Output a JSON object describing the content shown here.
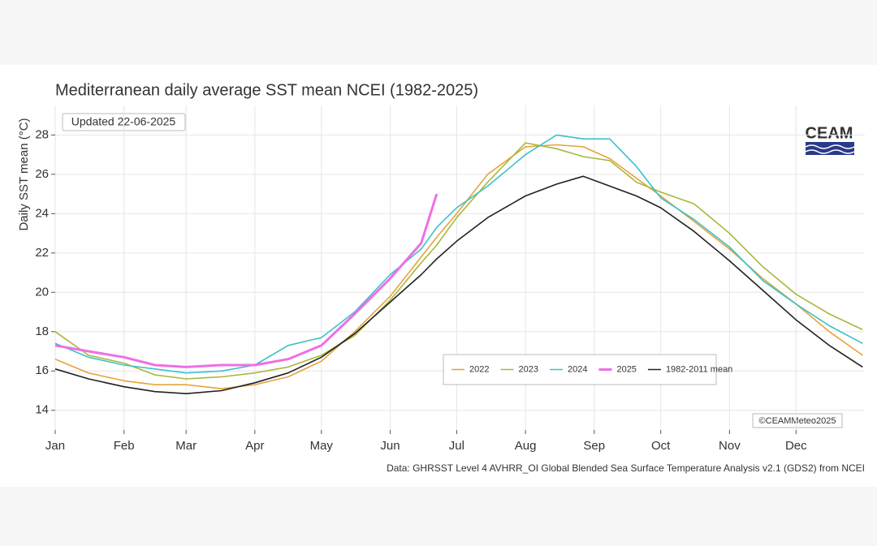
{
  "chart_data": {
    "type": "line",
    "title": "Mediterranean daily average SST mean NCEI (1982-2025)",
    "updated": "Updated 22-06-2025",
    "y_label": "Daily SST mean (°C)",
    "logo": "CEAM",
    "copyright": "©CEAMMeteo2025",
    "source": "Data: GHRSST Level 4 AVHRR_OI Global Blended Sea Surface Temperature Analysis v2.1 (GDS2) from NCEI",
    "x": [
      0,
      15,
      31,
      45,
      59,
      75,
      90,
      105,
      120,
      135,
      151,
      165,
      172,
      181,
      195,
      212,
      226,
      238,
      250,
      262,
      273,
      288,
      304,
      319,
      334,
      349,
      364
    ],
    "xlim": [
      0,
      365
    ],
    "xticks": [
      {
        "value": 0,
        "label": "Jan"
      },
      {
        "value": 31,
        "label": "Feb"
      },
      {
        "value": 59,
        "label": "Mar"
      },
      {
        "value": 90,
        "label": "Apr"
      },
      {
        "value": 120,
        "label": "May"
      },
      {
        "value": 151,
        "label": "Jun"
      },
      {
        "value": 181,
        "label": "Jul"
      },
      {
        "value": 212,
        "label": "Aug"
      },
      {
        "value": 243,
        "label": "Sep"
      },
      {
        "value": 273,
        "label": "Oct"
      },
      {
        "value": 304,
        "label": "Nov"
      },
      {
        "value": 334,
        "label": "Dec"
      }
    ],
    "ylim": [
      13,
      29.5
    ],
    "yticks": [
      14,
      16,
      18,
      20,
      22,
      24,
      26,
      28
    ],
    "grid": true,
    "series": [
      {
        "name": "2022",
        "color": "#e8a33d",
        "values": [
          16.6,
          15.9,
          15.5,
          15.3,
          15.3,
          15.1,
          15.3,
          15.7,
          16.5,
          18.0,
          19.8,
          21.8,
          22.8,
          24.0,
          26.0,
          27.4,
          27.5,
          27.4,
          26.8,
          25.8,
          24.9,
          23.6,
          22.2,
          20.7,
          19.4,
          18.0,
          16.8
        ]
      },
      {
        "name": "2023",
        "color": "#a8b83c",
        "values": [
          18.0,
          16.8,
          16.4,
          15.8,
          15.6,
          15.7,
          15.9,
          16.2,
          16.8,
          17.8,
          19.6,
          21.5,
          22.4,
          23.8,
          25.6,
          27.6,
          27.3,
          26.9,
          26.7,
          25.6,
          25.1,
          24.5,
          23.0,
          21.3,
          19.9,
          18.9,
          18.1
        ]
      },
      {
        "name": "2024",
        "color": "#3cc1c8",
        "values": [
          17.4,
          16.7,
          16.3,
          16.1,
          15.9,
          16.0,
          16.3,
          17.3,
          17.7,
          19.0,
          20.9,
          22.2,
          23.3,
          24.3,
          25.4,
          27.0,
          28.0,
          27.8,
          27.8,
          26.4,
          24.8,
          23.7,
          22.3,
          20.6,
          19.4,
          18.3,
          17.4
        ]
      },
      {
        "name": "2025",
        "color": "#ee6fe6",
        "values": [
          17.3,
          17.0,
          16.7,
          16.3,
          16.2,
          16.3,
          16.3,
          16.6,
          17.3,
          18.9,
          20.7,
          22.5,
          25.0,
          null,
          null,
          null,
          null,
          null,
          null,
          null,
          null,
          null,
          null,
          null,
          null,
          null,
          null
        ]
      },
      {
        "name": "1982-2011 mean",
        "color": "#222222",
        "values": [
          16.1,
          15.6,
          15.2,
          14.95,
          14.85,
          15.0,
          15.4,
          15.9,
          16.7,
          17.9,
          19.5,
          20.9,
          21.7,
          22.6,
          23.8,
          24.9,
          25.5,
          25.9,
          25.4,
          24.9,
          24.3,
          23.1,
          21.6,
          20.1,
          18.6,
          17.3,
          16.2
        ]
      }
    ]
  }
}
